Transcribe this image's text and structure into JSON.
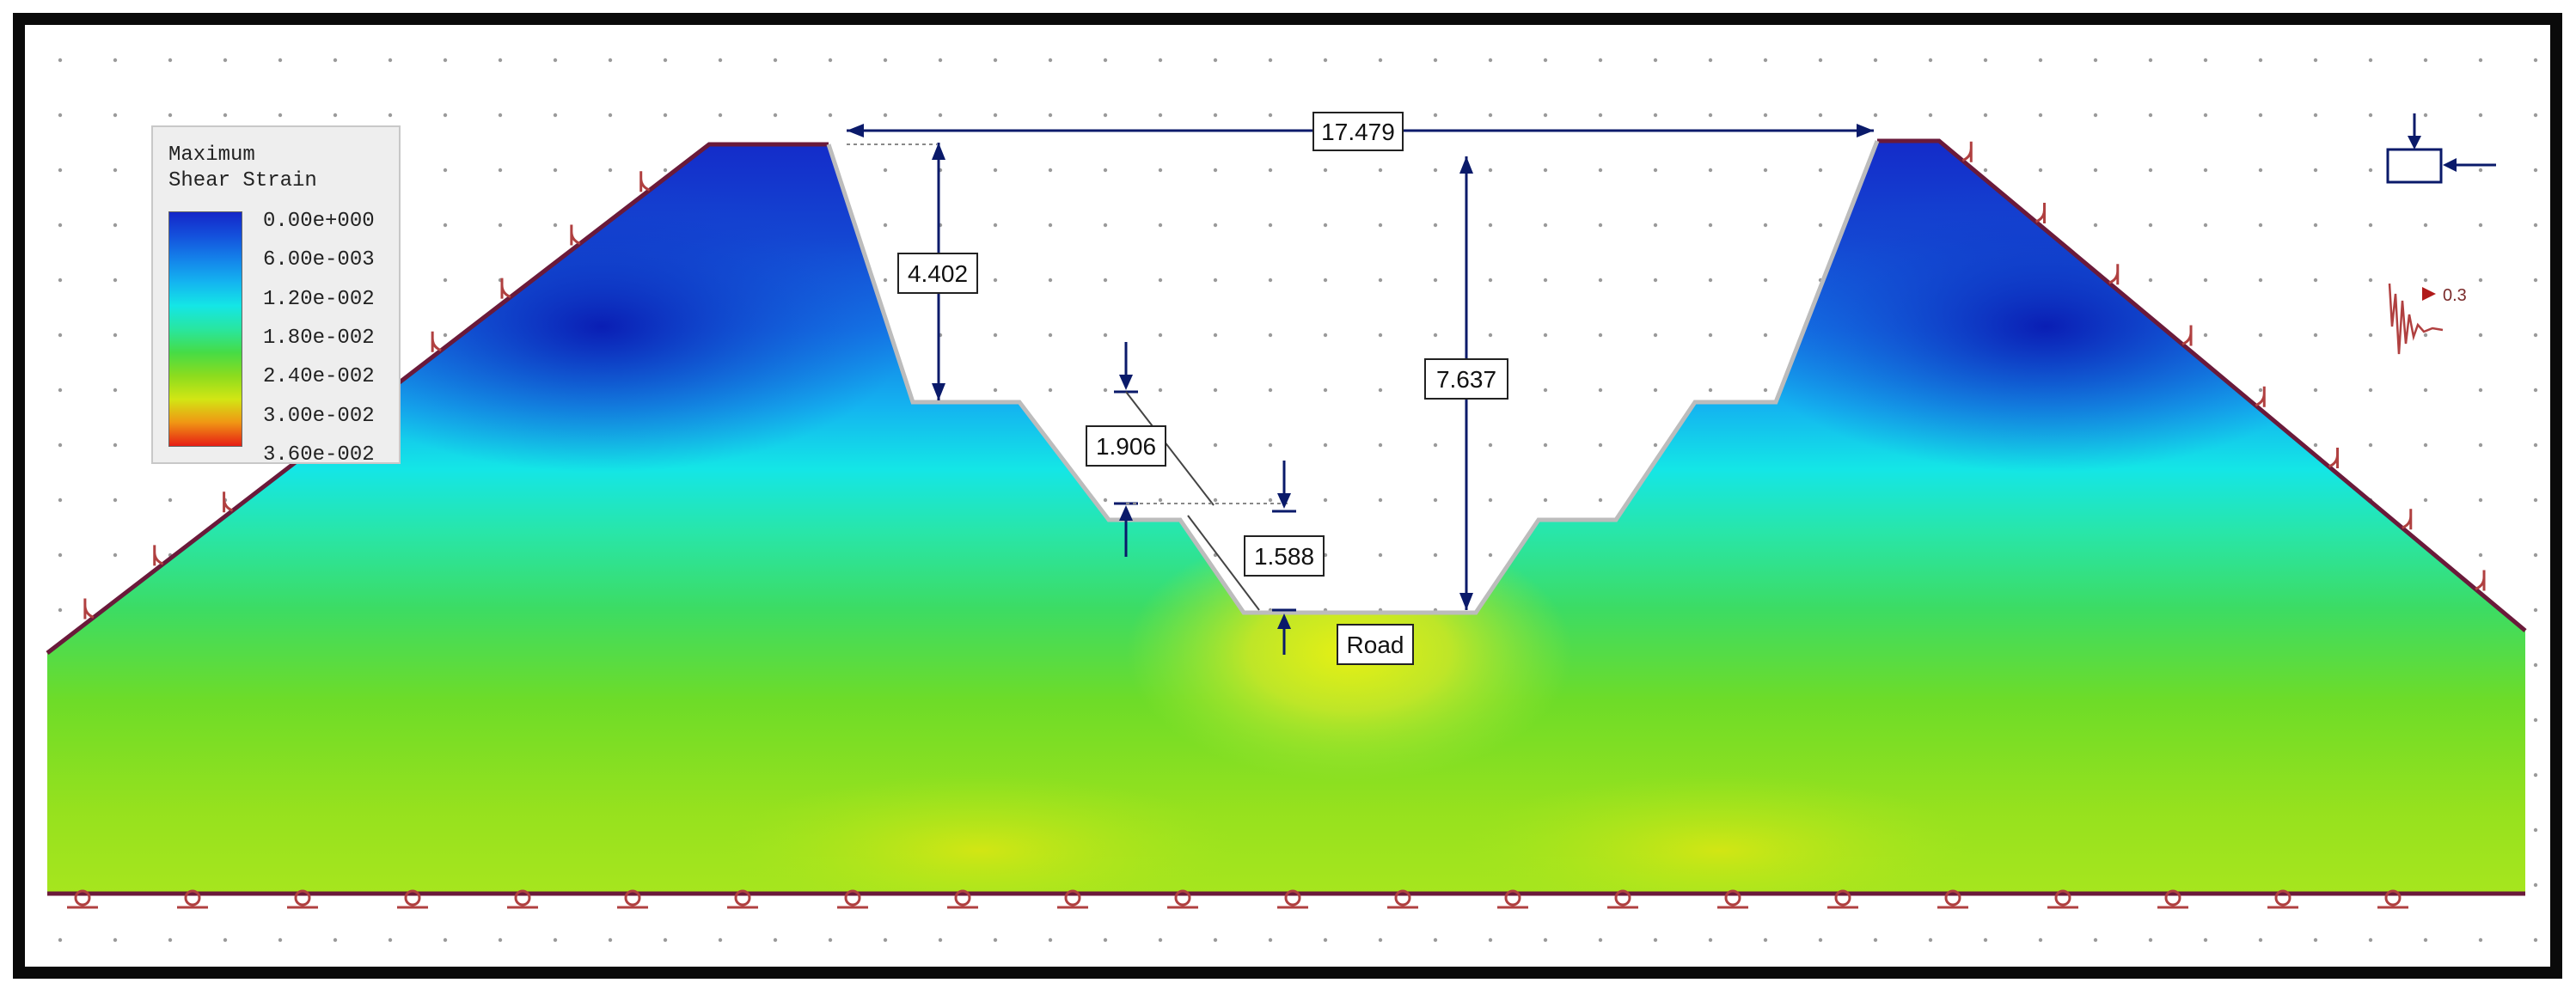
{
  "legend": {
    "title": "Maximum\nShear Strain",
    "labels": [
      "0.00e+000",
      "6.00e-003",
      "1.20e-002",
      "1.80e-002",
      "2.40e-002",
      "3.00e-002",
      "3.60e-002"
    ],
    "colors": [
      "#1426c8",
      "#1466e6",
      "#14aaf0",
      "#14e6e6",
      "#28e6a0",
      "#46dc46",
      "#8cdc1e",
      "#d2e614",
      "#f0c814",
      "#f07814",
      "#e61e14"
    ]
  },
  "dimensions": {
    "top_width": "17.479",
    "upper_bench_depth": "4.402",
    "middle_bench_depth": "1.906",
    "lower_bench_depth": "1.588",
    "total_depth": "7.637"
  },
  "labels": {
    "road": "Road",
    "seismic_coefficient": "0.3"
  },
  "colors": {
    "frame": "#0a0a0a",
    "boundary_line": "#6a1a3a",
    "dimension_line": "#0a1a6a",
    "support_symbol": "#b04040"
  }
}
